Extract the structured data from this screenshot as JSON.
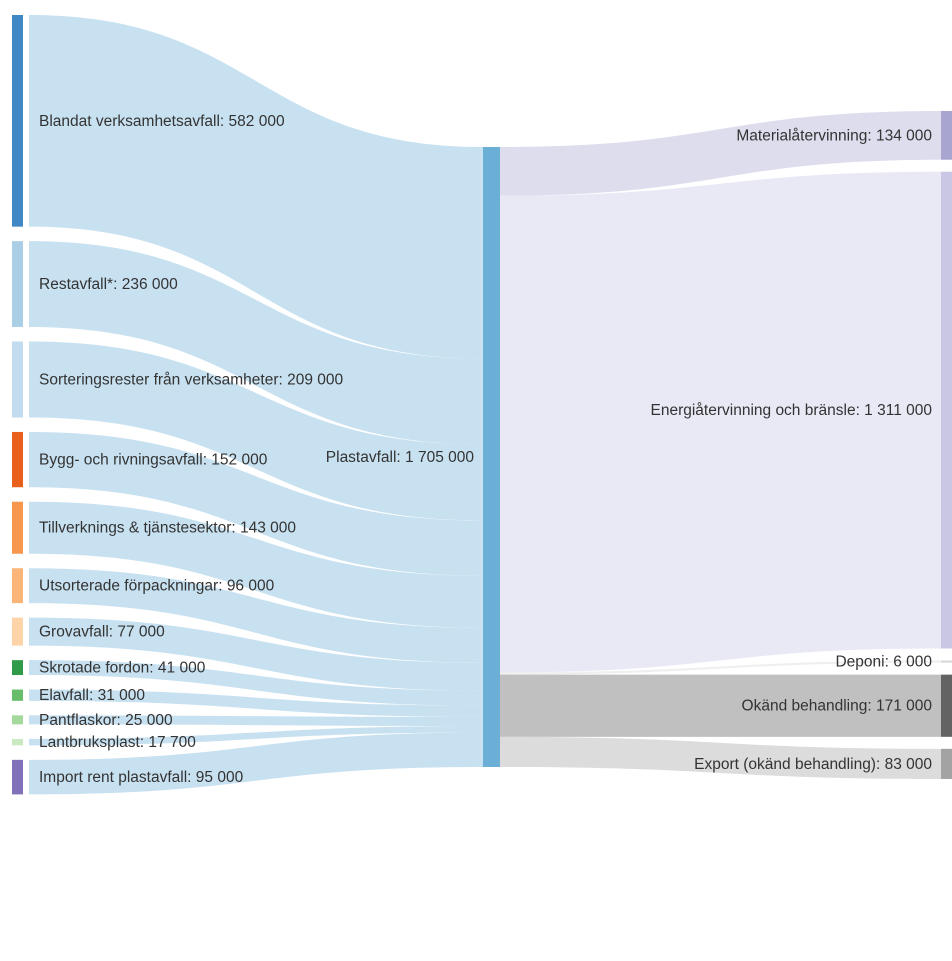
{
  "chart_data": {
    "type": "sankey",
    "unit": "",
    "sources": [
      {
        "label": "Blandat verksamhetsavfall: 582 000",
        "value": 582000,
        "color": "#3f88c5"
      },
      {
        "label": "Restavfall*: 236 000",
        "value": 236000,
        "color": "#a9cee6"
      },
      {
        "label": "Sorteringsrester från verksamheter: 209 000",
        "value": 209000,
        "color": "#c2dbee"
      },
      {
        "label": "Bygg- och rivningsavfall: 152 000",
        "value": 152000,
        "color": "#e8601c"
      },
      {
        "label": "Tillverknings & tjänstesektor: 143 000",
        "value": 143000,
        "color": "#f7964d"
      },
      {
        "label": "Utsorterade förpackningar: 96 000",
        "value": 96000,
        "color": "#fbb579"
      },
      {
        "label": "Grovavfall: 77 000",
        "value": 77000,
        "color": "#fdd3a8"
      },
      {
        "label": "Skrotade fordon: 41 000",
        "value": 41000,
        "color": "#2f9a48"
      },
      {
        "label": "Elavfall: 31 000",
        "value": 31000,
        "color": "#67bd69"
      },
      {
        "label": "Pantflaskor: 25 000",
        "value": 25000,
        "color": "#a3d99b"
      },
      {
        "label": "Lantbruksplast: 17 700",
        "value": 17700,
        "color": "#c9eac0"
      },
      {
        "label": "Import rent plastavfall: 95 000",
        "value": 95000,
        "color": "#8071b8"
      }
    ],
    "center": {
      "label": "Plastavfall: 1 705 000",
      "value": 1705000,
      "color": "#6baed6"
    },
    "targets": [
      {
        "label": "Materialåtervinning: 134 000",
        "value": 134000,
        "color": "#a9a5d1",
        "flow_color": "#dcdbec"
      },
      {
        "label": "Energiåtervinning och bränsle: 1 311 000",
        "value": 1311000,
        "color": "#c9c7e3",
        "flow_color": "#e8e8f5"
      },
      {
        "label": "Deponi: 6 000",
        "value": 6000,
        "color": "#d9d9d9",
        "flow_color": "#eeeeee"
      },
      {
        "label": "Okänd behandling: 171 000",
        "value": 171000,
        "color": "#636363",
        "flow_color": "#bdbdbd"
      },
      {
        "label": "Export (okänd behandling): 83 000",
        "value": 83000,
        "color": "#a3a3a3",
        "flow_color": "#dadada"
      }
    ],
    "inflow_color": "#c5dff0"
  }
}
